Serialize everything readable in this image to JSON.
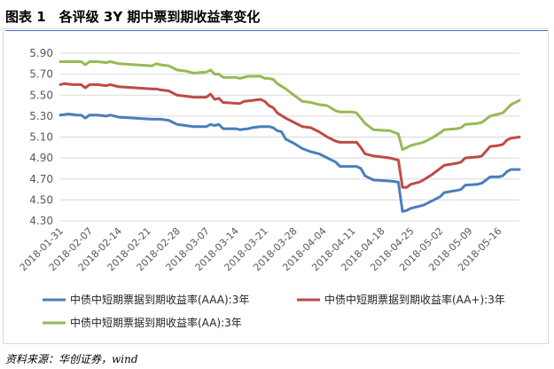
{
  "header": {
    "title": "图表 1　各评级 3Y 期中票到期收益率变化"
  },
  "footer": {
    "source": "资料来源：华创证券，wind"
  },
  "colors": {
    "aaa": "#4a7ebb",
    "aa_plus": "#be4b48",
    "aa": "#98b954",
    "grid": "#d9d9d9",
    "axis_text": "#595959"
  },
  "chart_data": {
    "type": "line",
    "title": "",
    "xlabel": "",
    "ylabel": "",
    "ylim": [
      4.3,
      5.9
    ],
    "yticks": [
      "4.30",
      "4.50",
      "4.70",
      "4.90",
      "5.10",
      "5.30",
      "5.50",
      "5.70",
      "5.90"
    ],
    "x_tick_labels": [
      "2018-01-31",
      "2018-02-07",
      "2018-02-14",
      "2018-02-21",
      "2018-02-28",
      "2018-03-07",
      "2018-03-14",
      "2018-03-21",
      "2018-03-28",
      "2018-04-04",
      "2018-04-11",
      "2018-04-18",
      "2018-04-25",
      "2018-05-02",
      "2018-05-09",
      "2018-05-16"
    ],
    "x_day_range": [
      0,
      110
    ],
    "legend_position": "bottom",
    "series": [
      {
        "name": "中债中短期票据到期收益率(AAA):3年",
        "color_key": "aaa",
        "points": [
          [
            0,
            5.31
          ],
          [
            2,
            5.32
          ],
          [
            4,
            5.31
          ],
          [
            5,
            5.31
          ],
          [
            6,
            5.28
          ],
          [
            7,
            5.31
          ],
          [
            9,
            5.31
          ],
          [
            11,
            5.3
          ],
          [
            12,
            5.31
          ],
          [
            14,
            5.29
          ],
          [
            18,
            5.28
          ],
          [
            22,
            5.27
          ],
          [
            23,
            5.27
          ],
          [
            24,
            5.27
          ],
          [
            26,
            5.26
          ],
          [
            28,
            5.22
          ],
          [
            30,
            5.21
          ],
          [
            32,
            5.2
          ],
          [
            35,
            5.2
          ],
          [
            36,
            5.22
          ],
          [
            37,
            5.21
          ],
          [
            38,
            5.22
          ],
          [
            39,
            5.18
          ],
          [
            42,
            5.18
          ],
          [
            43,
            5.17
          ],
          [
            45,
            5.18
          ],
          [
            46,
            5.19
          ],
          [
            48,
            5.2
          ],
          [
            50,
            5.2
          ],
          [
            51,
            5.19
          ],
          [
            52,
            5.16
          ],
          [
            53,
            5.15
          ],
          [
            54,
            5.08
          ],
          [
            56,
            5.04
          ],
          [
            58,
            4.99
          ],
          [
            60,
            4.96
          ],
          [
            62,
            4.94
          ],
          [
            64,
            4.9
          ],
          [
            66,
            4.86
          ],
          [
            67,
            4.82
          ],
          [
            70,
            4.82
          ],
          [
            71,
            4.82
          ],
          [
            72,
            4.8
          ],
          [
            73,
            4.73
          ],
          [
            75,
            4.69
          ],
          [
            79,
            4.68
          ],
          [
            81,
            4.67
          ],
          [
            82,
            4.39
          ],
          [
            83,
            4.4
          ],
          [
            84,
            4.42
          ],
          [
            86,
            4.44
          ],
          [
            87,
            4.45
          ],
          [
            89,
            4.49
          ],
          [
            91,
            4.53
          ],
          [
            92,
            4.57
          ],
          [
            95,
            4.59
          ],
          [
            96,
            4.6
          ],
          [
            97,
            4.64
          ],
          [
            100,
            4.65
          ],
          [
            101,
            4.66
          ],
          [
            103,
            4.72
          ],
          [
            105,
            4.72
          ],
          [
            106,
            4.73
          ],
          [
            107,
            4.77
          ],
          [
            108,
            4.79
          ],
          [
            110,
            4.79
          ]
        ]
      },
      {
        "name": "中债中短期票据到期收益率(AA+):3年",
        "color_key": "aa_plus",
        "points": [
          [
            0,
            5.6
          ],
          [
            1,
            5.61
          ],
          [
            3,
            5.6
          ],
          [
            5,
            5.6
          ],
          [
            6,
            5.57
          ],
          [
            7,
            5.6
          ],
          [
            9,
            5.6
          ],
          [
            11,
            5.59
          ],
          [
            12,
            5.6
          ],
          [
            14,
            5.58
          ],
          [
            18,
            5.57
          ],
          [
            22,
            5.56
          ],
          [
            23,
            5.56
          ],
          [
            24,
            5.55
          ],
          [
            26,
            5.54
          ],
          [
            28,
            5.5
          ],
          [
            30,
            5.49
          ],
          [
            32,
            5.48
          ],
          [
            35,
            5.48
          ],
          [
            36,
            5.51
          ],
          [
            37,
            5.46
          ],
          [
            38,
            5.47
          ],
          [
            39,
            5.43
          ],
          [
            43,
            5.42
          ],
          [
            44,
            5.44
          ],
          [
            46,
            5.45
          ],
          [
            48,
            5.46
          ],
          [
            49,
            5.44
          ],
          [
            50,
            5.4
          ],
          [
            51,
            5.38
          ],
          [
            52,
            5.33
          ],
          [
            54,
            5.28
          ],
          [
            56,
            5.24
          ],
          [
            58,
            5.2
          ],
          [
            60,
            5.19
          ],
          [
            62,
            5.15
          ],
          [
            64,
            5.1
          ],
          [
            66,
            5.06
          ],
          [
            67,
            5.05
          ],
          [
            70,
            5.05
          ],
          [
            71,
            5.05
          ],
          [
            72,
            5.0
          ],
          [
            73,
            4.94
          ],
          [
            75,
            4.92
          ],
          [
            79,
            4.9
          ],
          [
            81,
            4.88
          ],
          [
            82,
            4.62
          ],
          [
            83,
            4.62
          ],
          [
            84,
            4.65
          ],
          [
            86,
            4.67
          ],
          [
            87,
            4.69
          ],
          [
            89,
            4.74
          ],
          [
            91,
            4.8
          ],
          [
            92,
            4.83
          ],
          [
            95,
            4.85
          ],
          [
            96,
            4.86
          ],
          [
            97,
            4.9
          ],
          [
            100,
            4.91
          ],
          [
            101,
            4.92
          ],
          [
            103,
            5.01
          ],
          [
            105,
            5.02
          ],
          [
            106,
            5.03
          ],
          [
            107,
            5.07
          ],
          [
            108,
            5.09
          ],
          [
            110,
            5.1
          ]
        ]
      },
      {
        "name": "中债中短期票据到期收益率(AA):3年",
        "color_key": "aa",
        "points": [
          [
            0,
            5.82
          ],
          [
            3,
            5.82
          ],
          [
            5,
            5.82
          ],
          [
            6,
            5.79
          ],
          [
            7,
            5.82
          ],
          [
            9,
            5.82
          ],
          [
            11,
            5.81
          ],
          [
            12,
            5.82
          ],
          [
            14,
            5.8
          ],
          [
            18,
            5.79
          ],
          [
            22,
            5.78
          ],
          [
            23,
            5.8
          ],
          [
            24,
            5.79
          ],
          [
            26,
            5.78
          ],
          [
            28,
            5.74
          ],
          [
            30,
            5.73
          ],
          [
            32,
            5.71
          ],
          [
            35,
            5.72
          ],
          [
            36,
            5.74
          ],
          [
            37,
            5.7
          ],
          [
            38,
            5.7
          ],
          [
            39,
            5.67
          ],
          [
            42,
            5.67
          ],
          [
            43,
            5.66
          ],
          [
            45,
            5.68
          ],
          [
            48,
            5.68
          ],
          [
            49,
            5.66
          ],
          [
            50,
            5.66
          ],
          [
            51,
            5.65
          ],
          [
            52,
            5.61
          ],
          [
            54,
            5.56
          ],
          [
            56,
            5.5
          ],
          [
            58,
            5.44
          ],
          [
            60,
            5.43
          ],
          [
            62,
            5.41
          ],
          [
            64,
            5.4
          ],
          [
            66,
            5.35
          ],
          [
            67,
            5.34
          ],
          [
            70,
            5.34
          ],
          [
            71,
            5.33
          ],
          [
            72,
            5.28
          ],
          [
            73,
            5.23
          ],
          [
            75,
            5.17
          ],
          [
            79,
            5.16
          ],
          [
            81,
            5.13
          ],
          [
            82,
            4.98
          ],
          [
            83,
            5.0
          ],
          [
            84,
            5.02
          ],
          [
            86,
            5.04
          ],
          [
            87,
            5.05
          ],
          [
            89,
            5.09
          ],
          [
            91,
            5.14
          ],
          [
            92,
            5.17
          ],
          [
            95,
            5.18
          ],
          [
            96,
            5.19
          ],
          [
            97,
            5.22
          ],
          [
            100,
            5.23
          ],
          [
            101,
            5.24
          ],
          [
            103,
            5.3
          ],
          [
            105,
            5.32
          ],
          [
            106,
            5.33
          ],
          [
            107,
            5.37
          ],
          [
            108,
            5.41
          ],
          [
            110,
            5.45
          ]
        ]
      }
    ]
  }
}
